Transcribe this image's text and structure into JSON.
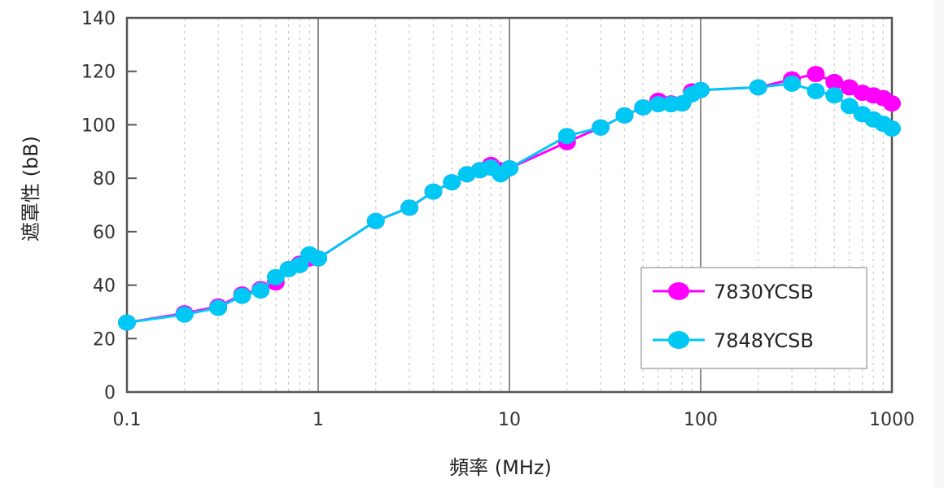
{
  "chart_data": {
    "type": "line",
    "title": "",
    "xlabel": "頻率 (MHz)",
    "ylabel": "遮罩性 (bB)",
    "xscale": "log",
    "xlim": [
      0.1,
      1000
    ],
    "ylim": [
      0,
      140
    ],
    "x_ticks": [
      "0.1",
      "1",
      "10",
      "100",
      "1000"
    ],
    "y_ticks": [
      "0",
      "20",
      "40",
      "60",
      "80",
      "100",
      "120",
      "140"
    ],
    "grid": {
      "major_x": "solid",
      "minor_x": "dotted",
      "y": "none"
    },
    "legend_position": "lower right",
    "x": [
      0.1,
      0.2,
      0.3,
      0.4,
      0.5,
      0.6,
      0.7,
      0.8,
      0.9,
      1,
      2,
      3,
      4,
      5,
      6,
      7,
      8,
      9,
      10,
      20,
      30,
      40,
      50,
      60,
      70,
      80,
      90,
      100,
      200,
      300,
      400,
      500,
      600,
      700,
      800,
      900,
      1000
    ],
    "series": [
      {
        "name": "7830YCSB",
        "color": "#ff00ff",
        "values": [
          26,
          29.5,
          32,
          36.5,
          38.5,
          41,
          46,
          48,
          50,
          50,
          64,
          69,
          75,
          78.5,
          81.5,
          83,
          85,
          83,
          83.7,
          93.5,
          99,
          103.5,
          106.5,
          109,
          108,
          108,
          112.5,
          113,
          114,
          117,
          119,
          116,
          114,
          112,
          111,
          110,
          108
        ]
      },
      {
        "name": "7848YCSB",
        "color": "#00c8f5",
        "values": [
          26,
          29,
          31.5,
          36,
          38,
          43,
          46,
          47.5,
          51.5,
          50,
          64,
          69,
          75,
          78.5,
          81.5,
          83,
          84,
          81.5,
          83.7,
          95.8,
          99,
          103.5,
          106.5,
          107.7,
          107.7,
          108,
          111.4,
          113,
          114,
          115.4,
          112.6,
          111,
          107,
          104,
          102,
          100.4,
          98.6
        ]
      }
    ]
  }
}
